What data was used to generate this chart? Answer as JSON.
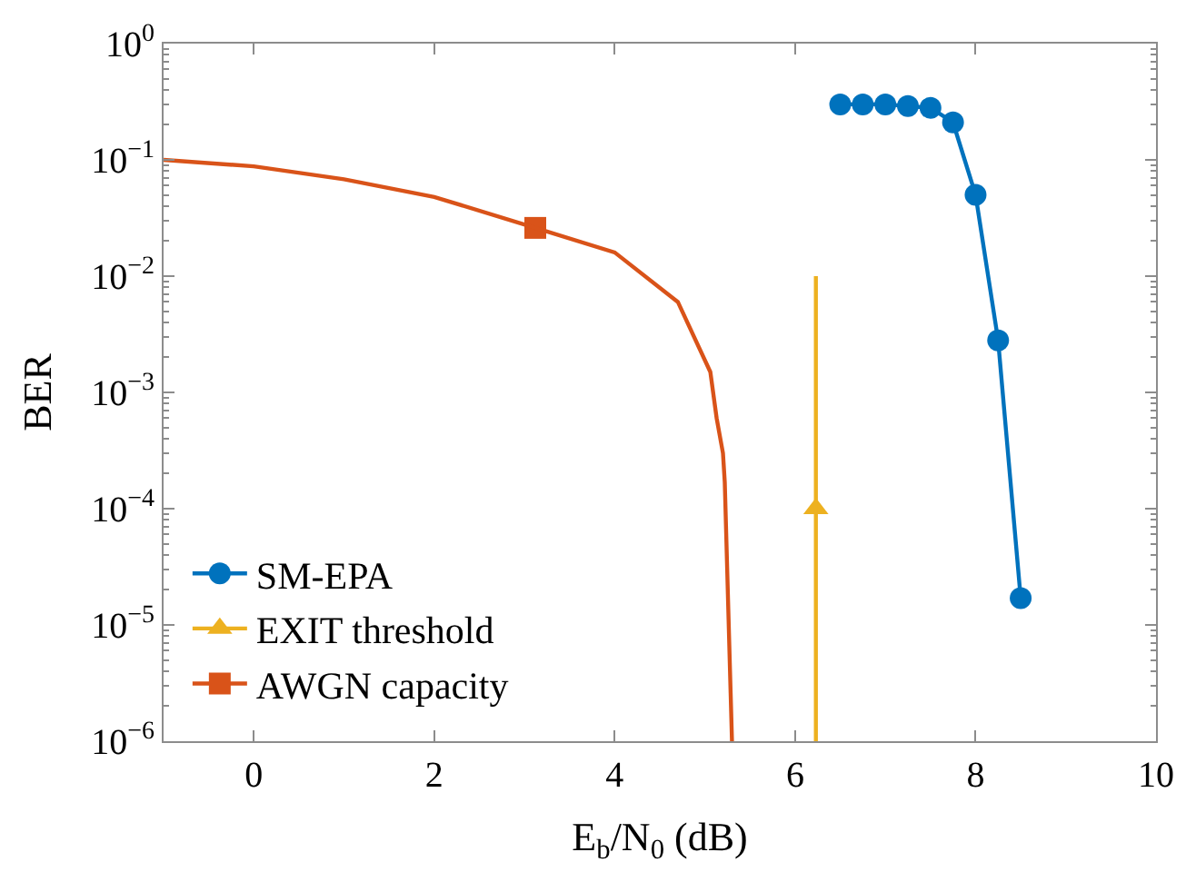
{
  "chart_data": {
    "type": "line",
    "xlabel": "E$_{b}$/N$_{0}$ (dB)",
    "ylabel": "BER",
    "log": "y",
    "legend": "bottom left",
    "xlim": [
      -1,
      10
    ],
    "xticks": [
      0,
      2,
      4,
      6,
      8,
      10
    ],
    "ylim": [
      1e-06,
      1
    ],
    "yticks": [
      {
        "value": 1e-06,
        "label": "10$^{−6}$"
      },
      {
        "value": 1e-05,
        "label": "10$^{−5}$"
      },
      {
        "value": 0.0001,
        "label": "10$^{−4}$"
      },
      {
        "value": 0.001,
        "label": "10$^{−3}$"
      },
      {
        "value": 0.01,
        "label": "10$^{−2}$"
      },
      {
        "value": 0.1,
        "label": "10$^{−1}$"
      },
      {
        "value": 1,
        "label": "10$^{0}$"
      }
    ],
    "series": [
      {
        "name": "SM-EPA",
        "color": "#0072bd",
        "marker": "circle",
        "x": [
          6.5,
          6.75,
          7,
          7.25,
          7.5,
          7.75,
          8,
          8.25,
          8.5
        ],
        "values": [
          0.3,
          0.3,
          0.3,
          0.29,
          0.28,
          0.21,
          0.05,
          0.0028,
          1.7e-05
        ]
      },
      {
        "name": "EXIT threshold",
        "color": "#edb120",
        "marker": "triangle",
        "x": [
          6.23
        ],
        "values": [
          0.0001
        ]
      },
      {
        "name": "AWGN capacity",
        "color": "#d95319",
        "marker": "square",
        "x": [
          3.12
        ],
        "values": [
          0.026
        ]
      },
      {
        "color": "#edb120",
        "marker": "none",
        "x": [
          6.23,
          6.23
        ],
        "values": [
          0.01,
          1e-06
        ]
      },
      {
        "color": "#d95319",
        "marker": "none",
        "x": [
          -1,
          0,
          1,
          2,
          3.12,
          4,
          4.7,
          5.06,
          5.13,
          5.2,
          5.22,
          5.3
        ],
        "values": [
          0.1,
          0.088,
          0.068,
          0.048,
          0.026,
          0.016,
          0.006,
          0.0015,
          0.0006,
          0.0003,
          0.00017,
          1e-06
        ]
      }
    ]
  }
}
